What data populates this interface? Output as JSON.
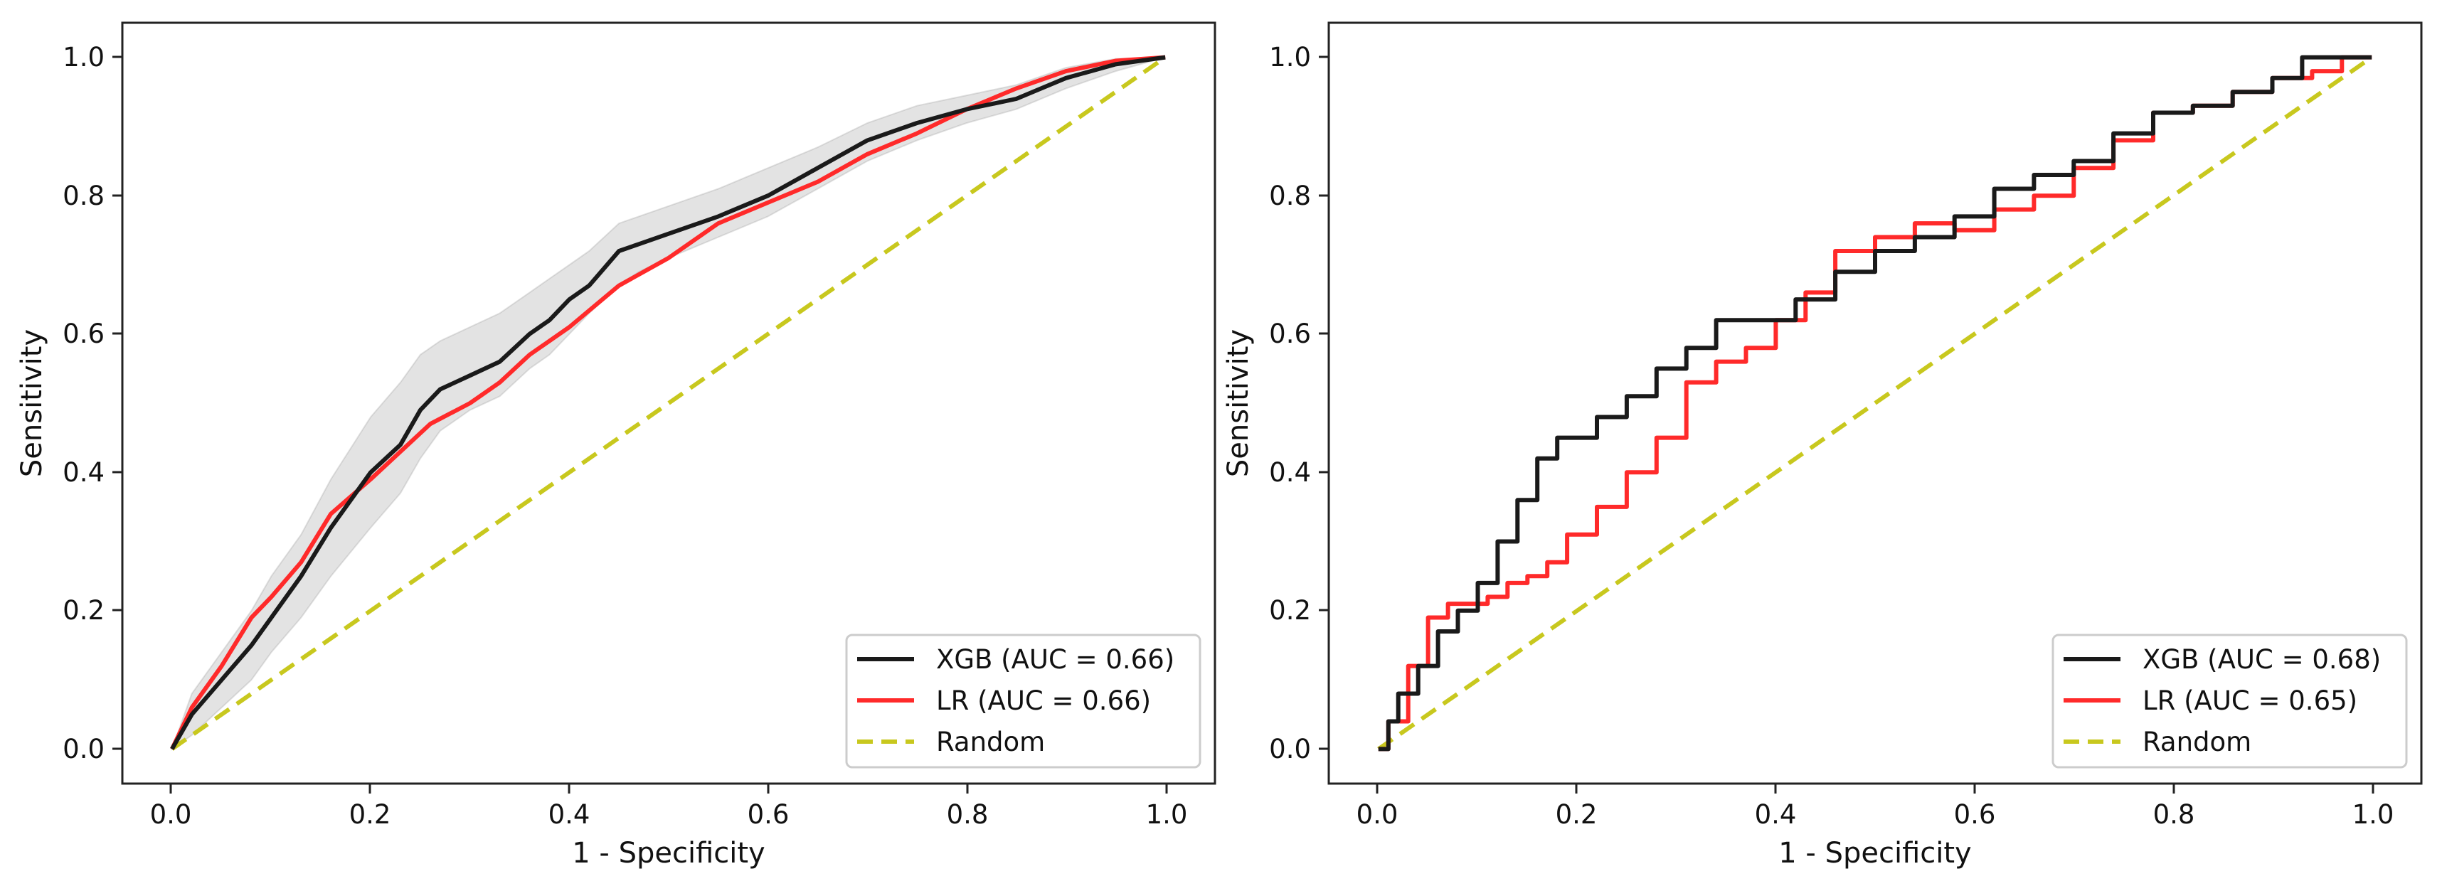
{
  "chart_data": [
    {
      "type": "line",
      "title": "",
      "xlabel": "1 - Specificity",
      "ylabel": "Sensitivity",
      "xlim": [
        -0.05,
        1.05
      ],
      "ylim": [
        -0.05,
        1.05
      ],
      "xticks": [
        "0.0",
        "0.2",
        "0.4",
        "0.6",
        "0.8",
        "1.0"
      ],
      "yticks": [
        "0.0",
        "0.2",
        "0.4",
        "0.6",
        "0.8",
        "1.0"
      ],
      "grid": false,
      "legend_position": "bottom-right",
      "series": [
        {
          "name": "XGB (AUC = 0.66)",
          "color": "#1a1a1a",
          "style": "solid",
          "x": [
            0,
            0.02,
            0.05,
            0.08,
            0.1,
            0.13,
            0.16,
            0.2,
            0.23,
            0.25,
            0.27,
            0.3,
            0.33,
            0.36,
            0.38,
            0.4,
            0.42,
            0.45,
            0.47,
            0.5,
            0.55,
            0.6,
            0.65,
            0.7,
            0.75,
            0.8,
            0.85,
            0.9,
            0.95,
            1.0
          ],
          "y": [
            0,
            0.05,
            0.1,
            0.15,
            0.19,
            0.25,
            0.32,
            0.4,
            0.44,
            0.49,
            0.52,
            0.54,
            0.56,
            0.6,
            0.62,
            0.65,
            0.67,
            0.72,
            0.73,
            0.745,
            0.77,
            0.8,
            0.84,
            0.88,
            0.905,
            0.925,
            0.94,
            0.97,
            0.99,
            1.0
          ],
          "band_lower": [
            0,
            0.02,
            0.06,
            0.1,
            0.14,
            0.19,
            0.25,
            0.32,
            0.37,
            0.42,
            0.46,
            0.49,
            0.51,
            0.55,
            0.57,
            0.6,
            0.63,
            0.67,
            0.69,
            0.71,
            0.74,
            0.77,
            0.81,
            0.85,
            0.88,
            0.905,
            0.925,
            0.955,
            0.98,
            1.0
          ],
          "band_upper": [
            0,
            0.08,
            0.14,
            0.2,
            0.25,
            0.31,
            0.39,
            0.48,
            0.53,
            0.57,
            0.59,
            0.61,
            0.63,
            0.66,
            0.68,
            0.7,
            0.72,
            0.76,
            0.77,
            0.785,
            0.81,
            0.84,
            0.87,
            0.905,
            0.93,
            0.945,
            0.96,
            0.985,
            0.998,
            1.0
          ]
        },
        {
          "name": "LR (AUC = 0.66)",
          "color": "#ff2a2a",
          "style": "solid",
          "x": [
            0,
            0.02,
            0.05,
            0.08,
            0.1,
            0.13,
            0.16,
            0.2,
            0.23,
            0.26,
            0.3,
            0.33,
            0.36,
            0.4,
            0.45,
            0.5,
            0.55,
            0.6,
            0.65,
            0.7,
            0.75,
            0.8,
            0.85,
            0.9,
            0.95,
            1.0
          ],
          "y": [
            0,
            0.06,
            0.12,
            0.19,
            0.22,
            0.27,
            0.34,
            0.39,
            0.43,
            0.47,
            0.5,
            0.53,
            0.57,
            0.61,
            0.67,
            0.71,
            0.76,
            0.79,
            0.82,
            0.86,
            0.89,
            0.925,
            0.955,
            0.98,
            0.995,
            1.0
          ]
        },
        {
          "name": "Random",
          "color": "#c8c81e",
          "style": "dashed",
          "x": [
            0,
            1
          ],
          "y": [
            0,
            1
          ]
        }
      ]
    },
    {
      "type": "line",
      "title": "",
      "xlabel": "1 - Specificity",
      "ylabel": "Sensitivity",
      "xlim": [
        -0.05,
        1.05
      ],
      "ylim": [
        -0.05,
        1.05
      ],
      "xticks": [
        "0.0",
        "0.2",
        "0.4",
        "0.6",
        "0.8",
        "1.0"
      ],
      "yticks": [
        "0.0",
        "0.2",
        "0.4",
        "0.6",
        "0.8",
        "1.0"
      ],
      "grid": false,
      "legend_position": "bottom-right",
      "series": [
        {
          "name": "XGB (AUC = 0.68)",
          "color": "#1a1a1a",
          "style": "step",
          "x": [
            0,
            0.01,
            0.02,
            0.04,
            0.06,
            0.08,
            0.1,
            0.12,
            0.14,
            0.16,
            0.18,
            0.2,
            0.22,
            0.25,
            0.28,
            0.31,
            0.34,
            0.38,
            0.42,
            0.46,
            0.5,
            0.54,
            0.58,
            0.62,
            0.66,
            0.7,
            0.74,
            0.78,
            0.82,
            0.86,
            0.9,
            0.93,
            0.96,
            1.0
          ],
          "y": [
            0,
            0.04,
            0.08,
            0.12,
            0.17,
            0.2,
            0.24,
            0.3,
            0.36,
            0.42,
            0.45,
            0.45,
            0.48,
            0.51,
            0.55,
            0.58,
            0.62,
            0.62,
            0.65,
            0.69,
            0.72,
            0.74,
            0.77,
            0.81,
            0.83,
            0.85,
            0.89,
            0.92,
            0.93,
            0.95,
            0.97,
            1.0,
            1.0,
            1.0
          ]
        },
        {
          "name": "LR (AUC = 0.65)",
          "color": "#ff2a2a",
          "style": "step",
          "x": [
            0,
            0.01,
            0.03,
            0.05,
            0.07,
            0.09,
            0.11,
            0.13,
            0.15,
            0.17,
            0.19,
            0.22,
            0.25,
            0.28,
            0.31,
            0.34,
            0.37,
            0.4,
            0.43,
            0.46,
            0.5,
            0.54,
            0.58,
            0.62,
            0.66,
            0.7,
            0.74,
            0.78,
            0.82,
            0.86,
            0.9,
            0.94,
            0.97,
            1.0
          ],
          "y": [
            0,
            0.04,
            0.12,
            0.19,
            0.21,
            0.21,
            0.22,
            0.24,
            0.25,
            0.27,
            0.31,
            0.35,
            0.4,
            0.45,
            0.53,
            0.56,
            0.58,
            0.62,
            0.66,
            0.72,
            0.74,
            0.76,
            0.75,
            0.78,
            0.8,
            0.84,
            0.88,
            0.92,
            0.93,
            0.95,
            0.97,
            0.98,
            1.0,
            1.0
          ]
        },
        {
          "name": "Random",
          "color": "#c8c81e",
          "style": "dashed",
          "x": [
            0,
            1
          ],
          "y": [
            0,
            1
          ]
        }
      ]
    }
  ]
}
